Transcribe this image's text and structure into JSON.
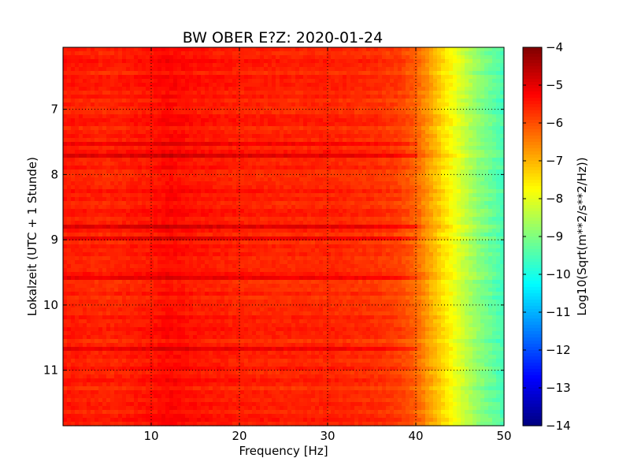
{
  "chart_data": {
    "type": "heatmap",
    "title": "BW OBER E?Z: 2020-01-24",
    "xlabel": "Frequency [Hz]",
    "ylabel": "Lokalzeit (UTC + 1 Stunde)",
    "xlim": [
      0,
      50
    ],
    "ylim": [
      11.85,
      6.05
    ],
    "y_inverted": true,
    "xticks": [
      10,
      20,
      30,
      40,
      50
    ],
    "xtick_labels": [
      "10",
      "20",
      "30",
      "40",
      "50"
    ],
    "yticks": [
      7,
      8,
      9,
      10,
      11
    ],
    "ytick_labels": [
      "7",
      "8",
      "9",
      "10",
      "11"
    ],
    "grid": true,
    "colormap": "jet",
    "colorbar": {
      "label": "Log10(Sqrt(m**2/s**2/Hz))",
      "range": [
        -14,
        -4
      ],
      "ticks": [
        -4,
        -5,
        -6,
        -7,
        -8,
        -9,
        -10,
        -11,
        -12,
        -13,
        -14
      ],
      "tick_labels": [
        "−4",
        "−5",
        "−6",
        "−7",
        "−8",
        "−9",
        "−10",
        "−11",
        "−12",
        "−13",
        "−14"
      ]
    },
    "value_profile_by_frequency": {
      "frequency_hz": [
        0,
        5,
        10,
        12,
        15,
        20,
        25,
        30,
        35,
        38,
        40,
        41,
        42,
        43,
        44,
        45,
        46,
        47,
        48,
        49,
        50
      ],
      "log10_psd": [
        -5.5,
        -5.6,
        -5.45,
        -5.3,
        -5.45,
        -5.55,
        -5.6,
        -5.6,
        -5.7,
        -5.85,
        -6.2,
        -6.6,
        -7.0,
        -7.4,
        -7.75,
        -8.15,
        -8.5,
        -8.85,
        -9.1,
        -9.35,
        -9.6
      ]
    },
    "strong_bands_local_time": [
      7.53,
      7.7,
      8.82,
      8.98,
      9.6,
      10.65
    ]
  }
}
